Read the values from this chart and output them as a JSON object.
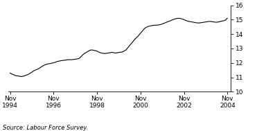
{
  "title": "",
  "ylabel": "%",
  "source_text": "Source: Labour Force Survey.",
  "ylim": [
    10,
    16
  ],
  "yticks": [
    10,
    11,
    12,
    13,
    14,
    15,
    16
  ],
  "xlim_start": 1994.75,
  "xlim_end": 2005.0,
  "xtick_years": [
    1994,
    1996,
    1998,
    2000,
    2002,
    2004
  ],
  "line_color": "#000000",
  "line_width": 0.8,
  "background_color": "#ffffff",
  "data_x": [
    1994.83,
    1994.92,
    1995.0,
    1995.08,
    1995.17,
    1995.25,
    1995.33,
    1995.42,
    1995.5,
    1995.58,
    1995.67,
    1995.75,
    1995.83,
    1995.92,
    1996.0,
    1996.08,
    1996.17,
    1996.25,
    1996.33,
    1996.42,
    1996.5,
    1996.58,
    1996.67,
    1996.75,
    1996.83,
    1996.92,
    1997.0,
    1997.08,
    1997.17,
    1997.25,
    1997.33,
    1997.42,
    1997.5,
    1997.58,
    1997.67,
    1997.75,
    1997.83,
    1997.92,
    1998.0,
    1998.08,
    1998.17,
    1998.25,
    1998.33,
    1998.42,
    1998.5,
    1998.58,
    1998.67,
    1998.75,
    1998.83,
    1998.92,
    1999.0,
    1999.08,
    1999.17,
    1999.25,
    1999.33,
    1999.42,
    1999.5,
    1999.58,
    1999.67,
    1999.75,
    1999.83,
    1999.92,
    2000.0,
    2000.08,
    2000.17,
    2000.25,
    2000.33,
    2000.42,
    2000.5,
    2000.58,
    2000.67,
    2000.75,
    2000.83,
    2000.92,
    2001.0,
    2001.08,
    2001.17,
    2001.25,
    2001.33,
    2001.42,
    2001.5,
    2001.58,
    2001.67,
    2001.75,
    2001.83,
    2001.92,
    2002.0,
    2002.08,
    2002.17,
    2002.25,
    2002.33,
    2002.42,
    2002.5,
    2002.58,
    2002.67,
    2002.75,
    2002.83,
    2002.92,
    2003.0,
    2003.08,
    2003.17,
    2003.25,
    2003.33,
    2003.42,
    2003.5,
    2003.58,
    2003.67,
    2003.75,
    2003.83,
    2003.92,
    2004.0,
    2004.08,
    2004.17,
    2004.25,
    2004.33,
    2004.42,
    2004.5,
    2004.58,
    2004.67,
    2004.75,
    2004.83
  ],
  "data_y": [
    11.3,
    11.22,
    11.18,
    11.12,
    11.1,
    11.08,
    11.05,
    11.07,
    11.1,
    11.15,
    11.2,
    11.28,
    11.35,
    11.45,
    11.5,
    11.55,
    11.62,
    11.7,
    11.78,
    11.85,
    11.9,
    11.93,
    11.95,
    11.98,
    12.0,
    12.05,
    12.1,
    12.12,
    12.15,
    12.17,
    12.18,
    12.2,
    12.22,
    12.22,
    12.22,
    12.24,
    12.25,
    12.28,
    12.3,
    12.4,
    12.55,
    12.65,
    12.72,
    12.8,
    12.87,
    12.9,
    12.88,
    12.85,
    12.82,
    12.75,
    12.7,
    12.67,
    12.65,
    12.66,
    12.68,
    12.7,
    12.73,
    12.72,
    12.68,
    12.7,
    12.72,
    12.74,
    12.76,
    12.82,
    12.9,
    13.05,
    13.2,
    13.35,
    13.5,
    13.65,
    13.78,
    13.9,
    14.05,
    14.2,
    14.35,
    14.45,
    14.52,
    14.55,
    14.58,
    14.6,
    14.62,
    14.62,
    14.63,
    14.66,
    14.7,
    14.75,
    14.8,
    14.85,
    14.9,
    14.95,
    15.0,
    15.05,
    15.08,
    15.1,
    15.08,
    15.05,
    15.0,
    14.95,
    14.9,
    14.87,
    14.85,
    14.83,
    14.8,
    14.78,
    14.77,
    14.78,
    14.8,
    14.82,
    14.84,
    14.86,
    14.88,
    14.87,
    14.85,
    14.83,
    14.82,
    14.84,
    14.87,
    14.9,
    14.93,
    14.97,
    15.1
  ]
}
